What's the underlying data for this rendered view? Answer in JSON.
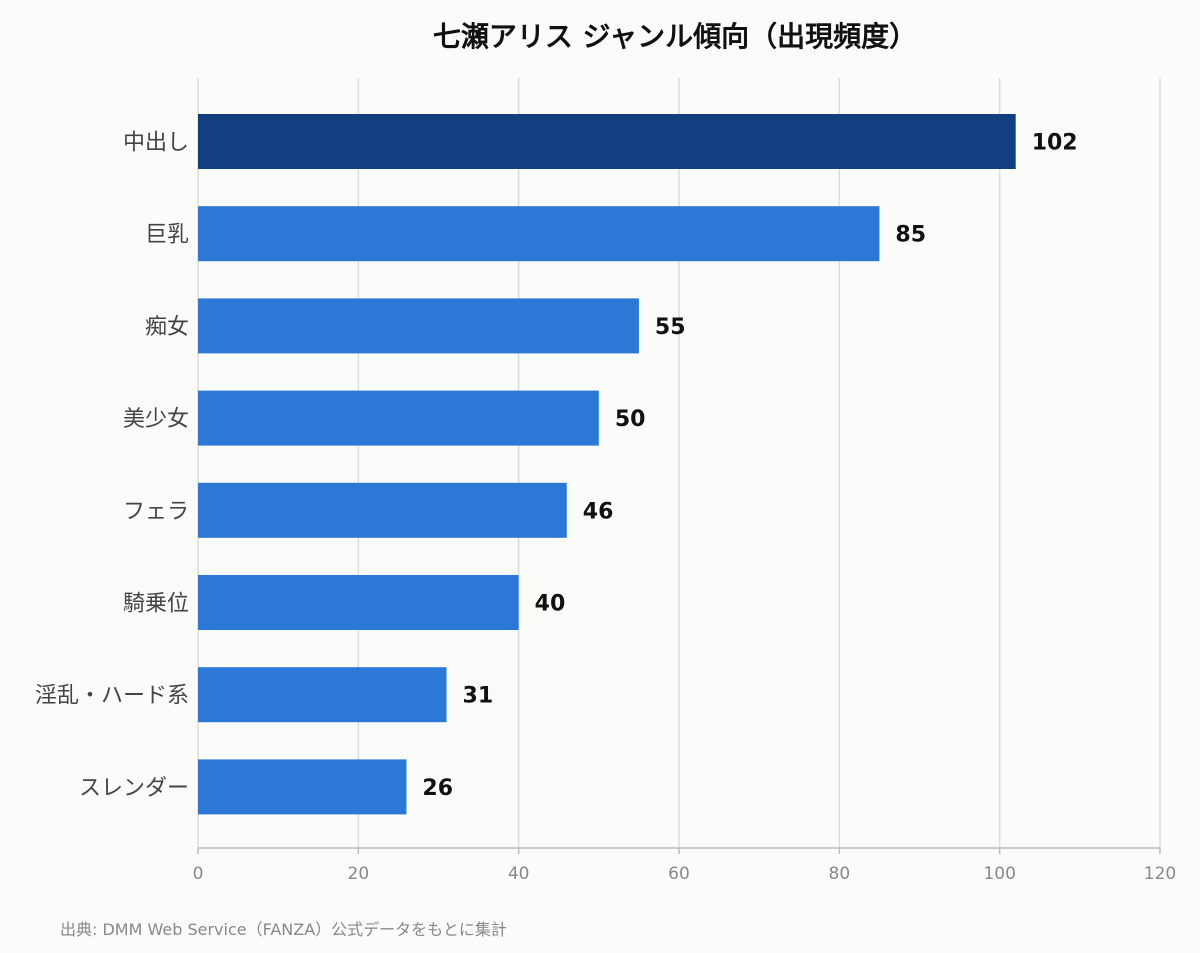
{
  "chart_data": {
    "type": "bar",
    "orientation": "horizontal",
    "title": "七瀬アリス ジャンル傾向（出現頻度）",
    "categories": [
      "中出し",
      "巨乳",
      "痴女",
      "美少女",
      "フェラ",
      "騎乗位",
      "淫乱・ハード系",
      "スレンダー"
    ],
    "values": [
      102,
      85,
      55,
      50,
      46,
      40,
      31,
      26
    ],
    "xlim": [
      0,
      120
    ],
    "x_ticks": [
      0,
      20,
      40,
      60,
      80,
      100,
      120
    ],
    "grid": "vertical",
    "colors": {
      "highlight": "#123f7f",
      "bar": "#2b78d6",
      "grid": "#dddddd",
      "axis": "#bdbdbd"
    }
  },
  "source_note": "出典: DMM Web Service（FANZA）公式データをもとに集計"
}
